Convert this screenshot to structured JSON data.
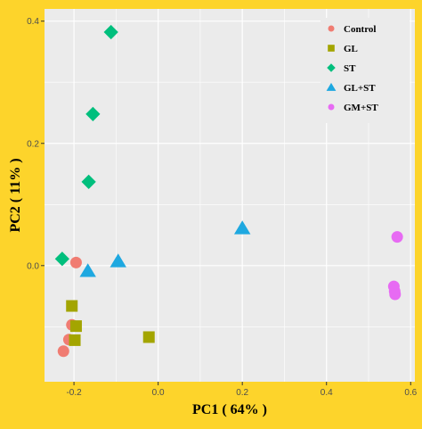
{
  "chart_data": {
    "type": "scatter",
    "title": "",
    "xlabel": "PC1 ( 64% )",
    "ylabel": "PC2 ( 11% )",
    "xlim": [
      -0.27,
      0.61
    ],
    "ylim": [
      -0.19,
      0.42
    ],
    "xticks": [
      -0.2,
      0.0,
      0.2,
      0.4,
      0.6
    ],
    "xtick_labels": [
      "-0.2",
      "0.0",
      "0.2",
      "0.4",
      "0.6"
    ],
    "yticks": [
      0.0,
      0.2,
      0.4
    ],
    "ytick_labels": [
      "0.0",
      "0.2",
      "0.4"
    ],
    "grid": true,
    "legend_position": "top-right",
    "background_color": "#ebebeb",
    "frame_color": "#fdd42b",
    "series": [
      {
        "name": "Control",
        "marker": "circle",
        "color": "#f07c72",
        "points": [
          {
            "x": -0.195,
            "y": 0.005
          },
          {
            "x": -0.205,
            "y": -0.097
          },
          {
            "x": -0.212,
            "y": -0.121
          },
          {
            "x": -0.225,
            "y": -0.14
          }
        ]
      },
      {
        "name": "GL",
        "marker": "square",
        "color": "#a3a500",
        "points": [
          {
            "x": -0.205,
            "y": -0.066
          },
          {
            "x": -0.195,
            "y": -0.099
          },
          {
            "x": -0.198,
            "y": -0.122
          },
          {
            "x": -0.022,
            "y": -0.117
          }
        ]
      },
      {
        "name": "ST",
        "marker": "diamond",
        "color": "#00bf7d",
        "points": [
          {
            "x": -0.112,
            "y": 0.382
          },
          {
            "x": -0.155,
            "y": 0.248
          },
          {
            "x": -0.165,
            "y": 0.137
          },
          {
            "x": -0.228,
            "y": 0.011
          }
        ]
      },
      {
        "name": "GL+ST",
        "marker": "triangle",
        "color": "#1ea8e0",
        "points": [
          {
            "x": 0.2,
            "y": 0.061
          },
          {
            "x": -0.095,
            "y": 0.007
          },
          {
            "x": -0.167,
            "y": -0.009
          }
        ]
      },
      {
        "name": "GM+ST",
        "marker": "circle",
        "color": "#e76bf3",
        "points": [
          {
            "x": 0.568,
            "y": 0.047
          },
          {
            "x": 0.56,
            "y": -0.034
          },
          {
            "x": 0.562,
            "y": -0.042
          },
          {
            "x": 0.563,
            "y": -0.047
          }
        ]
      }
    ]
  }
}
